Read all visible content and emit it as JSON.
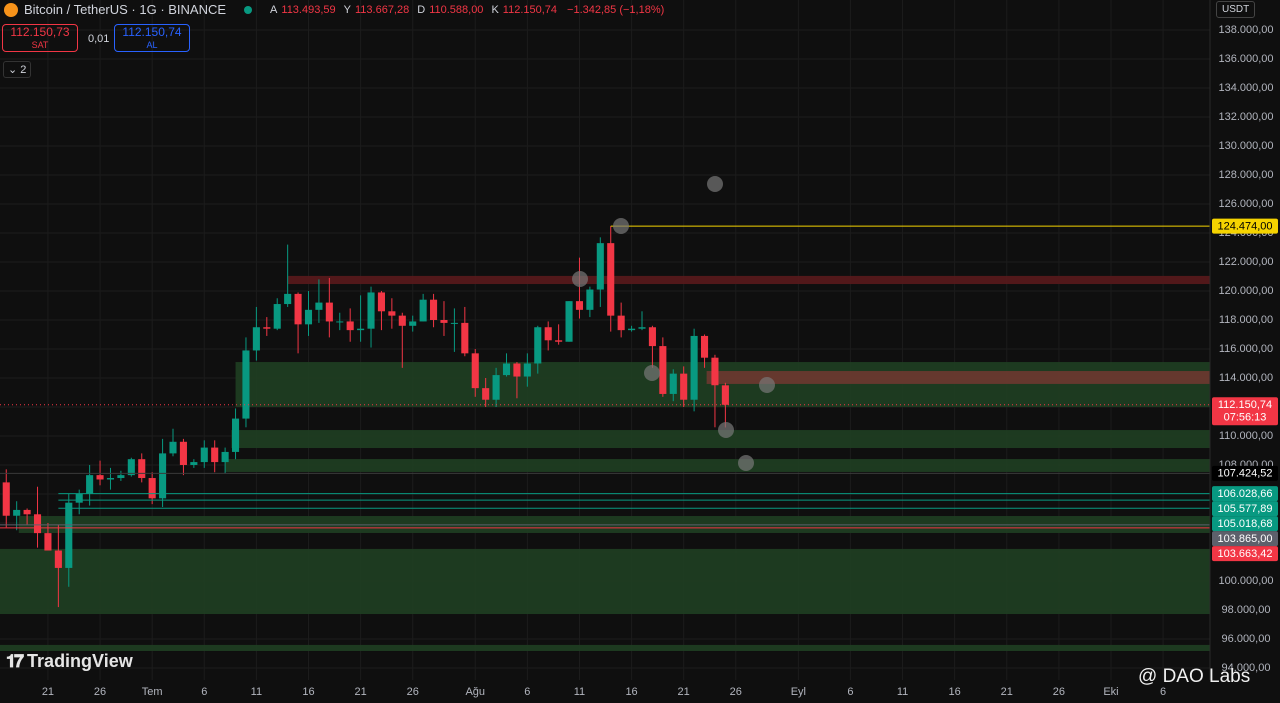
{
  "header": {
    "symbol": "Bitcoin / TetherUS · 1G · BINANCE",
    "ohlc": [
      {
        "key": "A",
        "value": "113.493,59"
      },
      {
        "key": "Y",
        "value": "113.667,28"
      },
      {
        "key": "D",
        "value": "110.588,00"
      },
      {
        "key": "K",
        "value": "112.150,74"
      }
    ],
    "change": "−1.342,85 (−1,18%)"
  },
  "trade": {
    "sell_price": "112.150,73",
    "sell": "SAT",
    "spread": "0,01",
    "buy_price": "112.150,74",
    "buy": "AL"
  },
  "indicators_count": "2",
  "currency": "USDT",
  "watermark": "TradingView",
  "credit": "@ DAO Labs",
  "chart_data": {
    "type": "candlestick",
    "up_color": "#089981",
    "down_color": "#f23645",
    "grid": true,
    "xlim": [
      -0.6,
      115.5
    ],
    "ylim": [
      93170,
      140070
    ],
    "xticks": [
      {
        "value": 4,
        "label": "21"
      },
      {
        "value": 9,
        "label": "26"
      },
      {
        "value": 14,
        "label": "Tem"
      },
      {
        "value": 19,
        "label": "6"
      },
      {
        "value": 24,
        "label": "11"
      },
      {
        "value": 29,
        "label": "16"
      },
      {
        "value": 34,
        "label": "21"
      },
      {
        "value": 39,
        "label": "26"
      },
      {
        "value": 45,
        "label": "Ağu"
      },
      {
        "value": 50,
        "label": "6"
      },
      {
        "value": 55,
        "label": "11"
      },
      {
        "value": 60,
        "label": "16"
      },
      {
        "value": 65,
        "label": "21"
      },
      {
        "value": 70,
        "label": "26"
      },
      {
        "value": 76,
        "label": "Eyl"
      },
      {
        "value": 81,
        "label": "6"
      },
      {
        "value": 86,
        "label": "11"
      },
      {
        "value": 91,
        "label": "16"
      },
      {
        "value": 96,
        "label": "21"
      },
      {
        "value": 101,
        "label": "26"
      },
      {
        "value": 106,
        "label": "Eki"
      },
      {
        "value": 111,
        "label": "6"
      }
    ],
    "yticks": [
      {
        "value": 94000,
        "label": "94.000,00"
      },
      {
        "value": 96000,
        "label": "96.000,00"
      },
      {
        "value": 98000,
        "label": "98.000,00"
      },
      {
        "value": 100000,
        "label": "100.000,00"
      },
      {
        "value": 102000,
        "label": "102.000,00"
      },
      {
        "value": 104000,
        "label": "104.000,00"
      },
      {
        "value": 106000,
        "label": "106.000,00"
      },
      {
        "value": 108000,
        "label": "108.000,00"
      },
      {
        "value": 110000,
        "label": "110.000,00"
      },
      {
        "value": 112000,
        "label": "112.000,00"
      },
      {
        "value": 114000,
        "label": "114.000,00"
      },
      {
        "value": 116000,
        "label": "116.000,00"
      },
      {
        "value": 118000,
        "label": "118.000,00"
      },
      {
        "value": 120000,
        "label": "120.000,00"
      },
      {
        "value": 122000,
        "label": "122.000,00"
      },
      {
        "value": 124000,
        "label": "124.000,00"
      },
      {
        "value": 126000,
        "label": "126.000,00"
      },
      {
        "value": 128000,
        "label": "128.000,00"
      },
      {
        "value": 130000,
        "label": "130.000,00"
      },
      {
        "value": 132000,
        "label": "132.000,00"
      },
      {
        "value": 134000,
        "label": "134.000,00"
      },
      {
        "value": 136000,
        "label": "136.000,00"
      },
      {
        "value": 138000,
        "label": "138.000,00"
      }
    ],
    "open": [
      106800,
      104500,
      104900,
      104600,
      103300,
      102100,
      100900,
      105400,
      106000,
      107300,
      107000,
      107100,
      107300,
      108400,
      107100,
      105700,
      108800,
      109600,
      108000,
      108200,
      109200,
      108200,
      108900,
      111200,
      115900,
      117500,
      117400,
      119100,
      119800,
      117700,
      118700,
      119200,
      117900,
      117900,
      117300,
      117400,
      119900,
      118600,
      118300,
      117600,
      117900,
      119400,
      118000,
      117800,
      117800,
      115700,
      113300,
      112500,
      114200,
      115000,
      114100,
      115000,
      117500,
      116600,
      116500,
      119300,
      118700,
      120100,
      123300,
      118300,
      117300,
      117400,
      117500,
      116200,
      112900,
      114300,
      112500,
      116900,
      115400,
      113493.59
    ],
    "high": [
      107700,
      105500,
      105000,
      106500,
      104000,
      103900,
      106000,
      106300,
      108000,
      108300,
      107800,
      107600,
      108500,
      108800,
      107500,
      109800,
      110500,
      109800,
      108400,
      109700,
      109700,
      109200,
      111900,
      116800,
      118900,
      118200,
      119500,
      123200,
      119900,
      120000,
      120800,
      120900,
      118500,
      118800,
      119700,
      120300,
      120000,
      119500,
      118500,
      118300,
      119800,
      119800,
      119300,
      118800,
      118900,
      116000,
      114000,
      114700,
      115700,
      115100,
      115700,
      117600,
      117900,
      117700,
      119300,
      122300,
      120300,
      123700,
      124474,
      119200,
      117600,
      118600,
      117600,
      116800,
      114600,
      114800,
      117400,
      117000,
      115600,
      113667.28
    ],
    "low": [
      103700,
      103500,
      103900,
      102300,
      102400,
      98200,
      99600,
      104600,
      105200,
      106600,
      106300,
      106900,
      107200,
      106800,
      105300,
      105100,
      108600,
      107300,
      107800,
      107800,
      107500,
      107400,
      108400,
      110600,
      115200,
      116900,
      117300,
      118900,
      115700,
      116900,
      117800,
      116800,
      117300,
      116500,
      116500,
      116100,
      117300,
      117400,
      114700,
      117200,
      117900,
      117500,
      116900,
      115800,
      115500,
      112700,
      112000,
      112000,
      114100,
      112600,
      113400,
      114300,
      115900,
      116300,
      116500,
      118100,
      118200,
      118900,
      117200,
      116800,
      117200,
      117300,
      114700,
      112700,
      112400,
      112000,
      111700,
      114700,
      110600,
      110588
    ],
    "close": [
      104500,
      104900,
      104600,
      103300,
      102100,
      100900,
      105400,
      106000,
      107300,
      107000,
      107100,
      107300,
      108400,
      107100,
      105700,
      108800,
      109600,
      108000,
      108200,
      109200,
      108200,
      108900,
      111200,
      115900,
      117500,
      117400,
      119100,
      119800,
      117700,
      118700,
      119200,
      117900,
      117900,
      117300,
      117400,
      119900,
      118600,
      118300,
      117600,
      117900,
      119400,
      118000,
      117800,
      117800,
      115700,
      113300,
      112500,
      114200,
      115000,
      114100,
      115000,
      117500,
      116600,
      116500,
      119300,
      118700,
      120100,
      123300,
      118300,
      117300,
      117400,
      117500,
      116200,
      112900,
      114300,
      112500,
      116900,
      115400,
      113500,
      112150.74
    ],
    "zones": [
      {
        "top": 121040,
        "bottom": 120480,
        "from": 27,
        "color": "#5a1a1c"
      },
      {
        "top": 115100,
        "bottom": 112000,
        "from": 22,
        "color": "#1f3f22"
      },
      {
        "top": 114480,
        "bottom": 113590,
        "from": 67.2,
        "color": "#6e3830"
      },
      {
        "top": 110410,
        "bottom": 109170,
        "from": 21.6,
        "color": "#1f3f22"
      },
      {
        "top": 108410,
        "bottom": 107520,
        "from": 21,
        "color": "#1f3f22"
      },
      {
        "top": 104480,
        "bottom": 103310,
        "from": 1.2,
        "color": "#1f3f22"
      },
      {
        "top": 102210,
        "bottom": 97720,
        "from": -0.6,
        "color": "#1f3f22"
      },
      {
        "top": 95590,
        "bottom": 95170,
        "from": -0.6,
        "color": "#1f3f22"
      }
    ],
    "price_lines": [
      {
        "value": 124474,
        "label": "124.474,00",
        "color": "#f5d300",
        "text_color": "#000000",
        "from": 58
      },
      {
        "value": 112150.74,
        "label": "112.150,74",
        "sublabel": "07:56:13",
        "color": "#f23645",
        "text_color": "#ffffff",
        "from": -0.6
      },
      {
        "value": 107424.52,
        "label": "107.424,52",
        "color": "#000000",
        "text_color": "#ffffff",
        "from": -0.6
      },
      {
        "value": 106028.66,
        "label": "106.028,66",
        "color": "#089981",
        "text_color": "#ffffff",
        "from": 5
      },
      {
        "value": 105577.89,
        "label": "105.577,89",
        "color": "#089981",
        "text_color": "#ffffff",
        "from": 5
      },
      {
        "value": 105018.68,
        "label": "105.018,68",
        "color": "#089981",
        "text_color": "#ffffff",
        "from": 5
      },
      {
        "value": 103865,
        "label": "103.865,00",
        "color": "#5d606b",
        "text_color": "#ffffff",
        "from": -0.6
      },
      {
        "value": 103663.42,
        "label": "103.663,42",
        "color": "#f23645",
        "text_color": "#ffffff",
        "from": -0.6
      }
    ]
  }
}
